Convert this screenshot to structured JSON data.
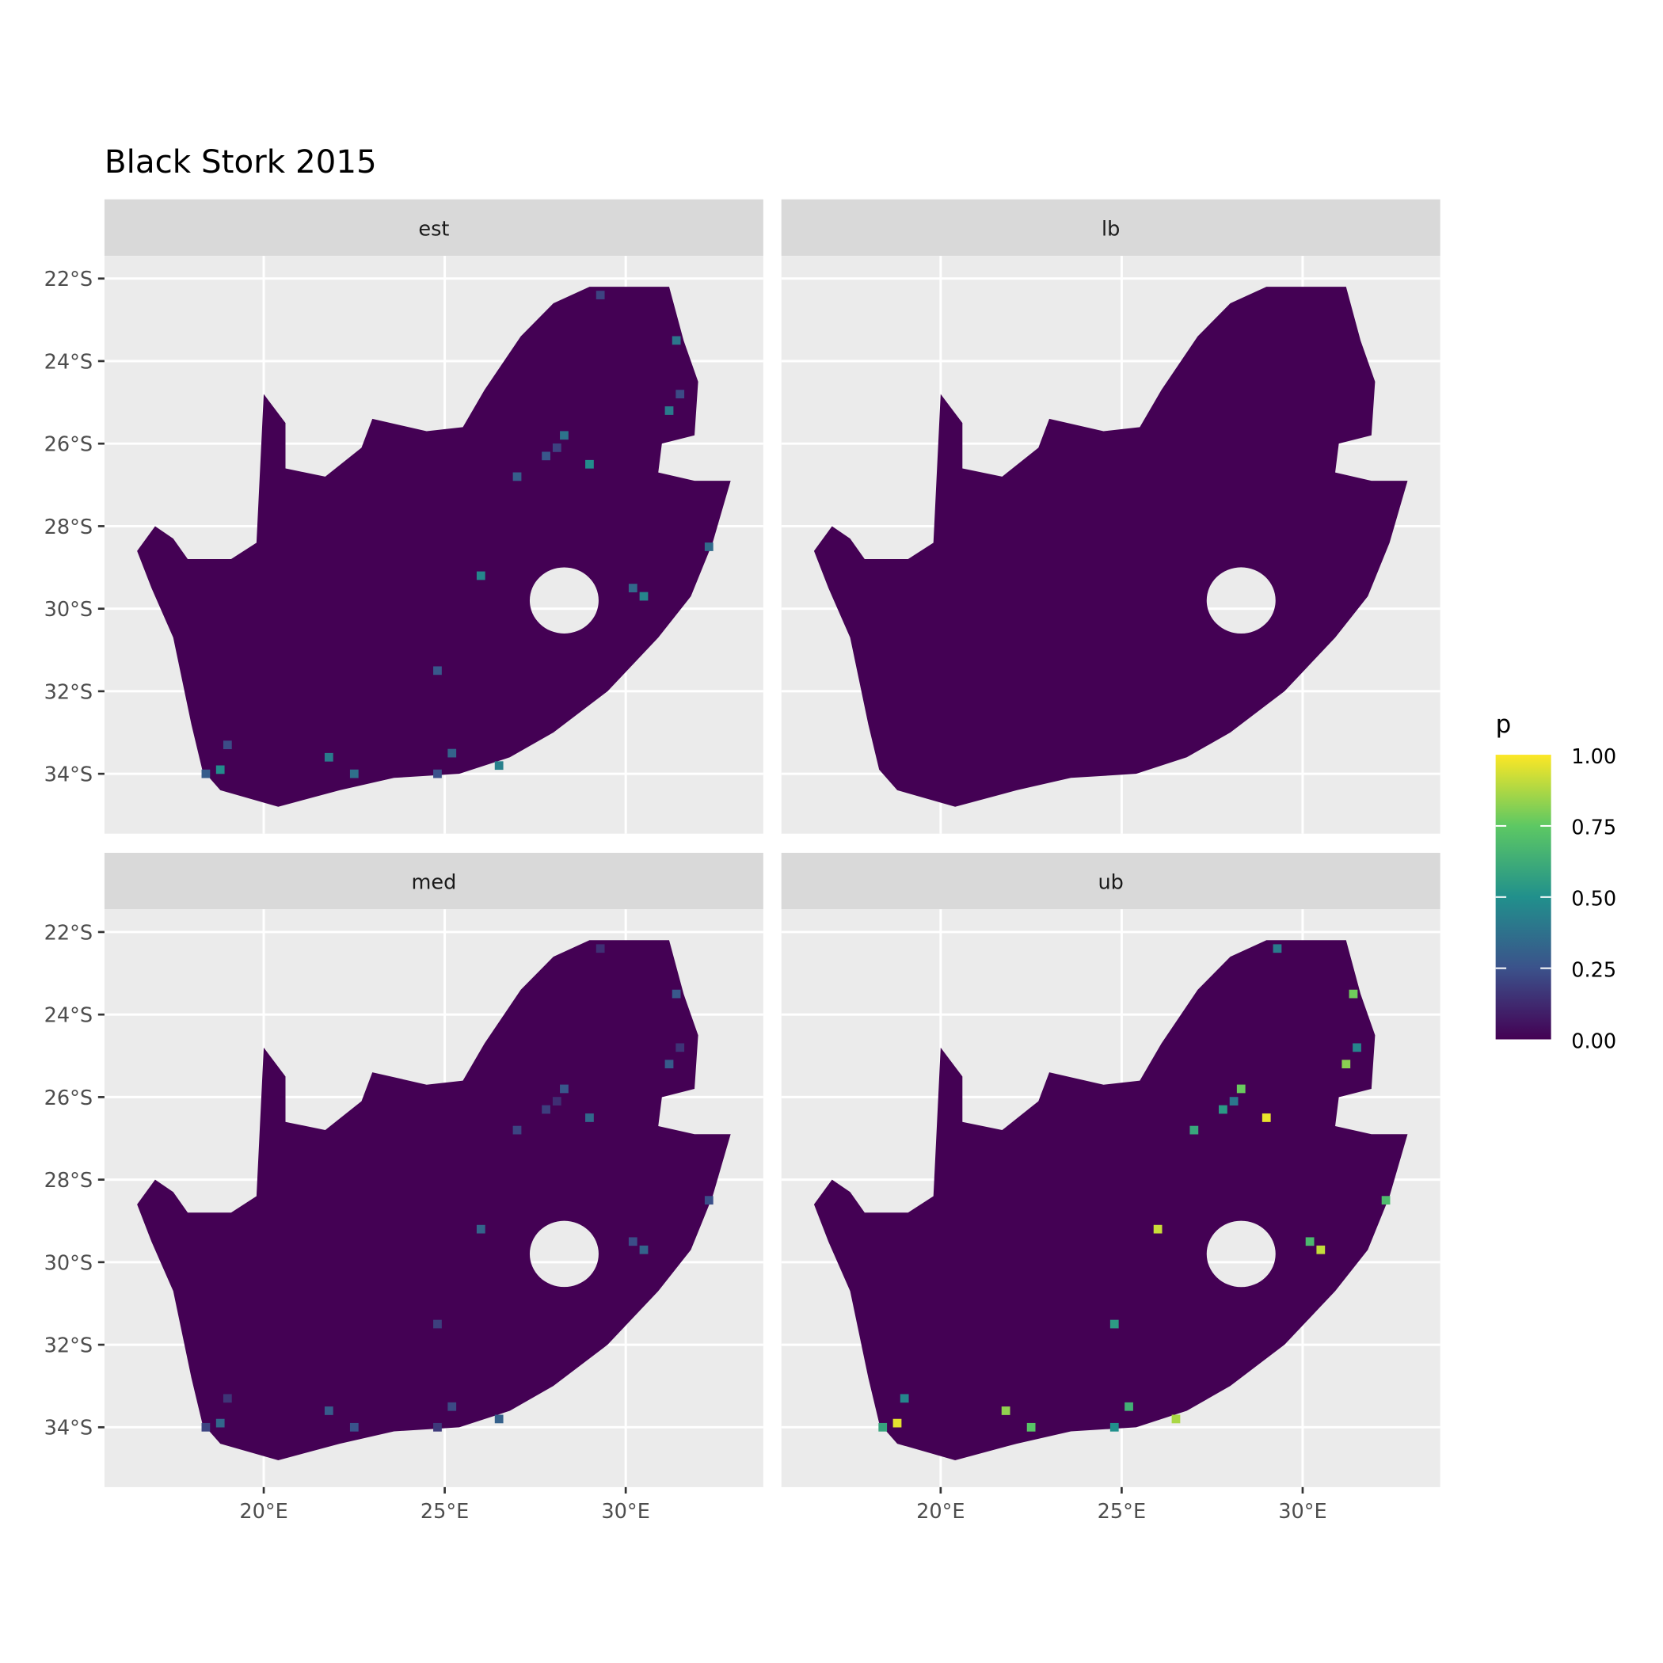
{
  "chart_data": {
    "type": "heatmap",
    "title": "Black Stork 2015",
    "facets": [
      "est",
      "lb",
      "med",
      "ub"
    ],
    "xlabel": "",
    "ylabel": "",
    "x_ticks": [
      "20°E",
      "25°E",
      "30°E"
    ],
    "x_tick_values": [
      20,
      25,
      30
    ],
    "y_ticks": [
      "22°S",
      "24°S",
      "26°S",
      "28°S",
      "30°S",
      "32°S",
      "34°S"
    ],
    "y_tick_values": [
      -22,
      -24,
      -26,
      -28,
      -30,
      -32,
      -34
    ],
    "xlim": [
      15.6,
      33.8
    ],
    "ylim": [
      -35.45,
      -21.45
    ],
    "grid": true,
    "legend": {
      "title": "p",
      "position": "right",
      "ticks": [
        "1.00",
        "0.75",
        "0.50",
        "0.25",
        "0.00"
      ],
      "range": [
        0,
        1
      ],
      "colormap": "viridis",
      "colors": [
        "#440154",
        "#3b528b",
        "#21908c",
        "#5dc863",
        "#fde725"
      ]
    },
    "facet_intensity": {
      "est": 0.5,
      "lb": 0.05,
      "med": 0.35,
      "ub": 1.0
    }
  }
}
